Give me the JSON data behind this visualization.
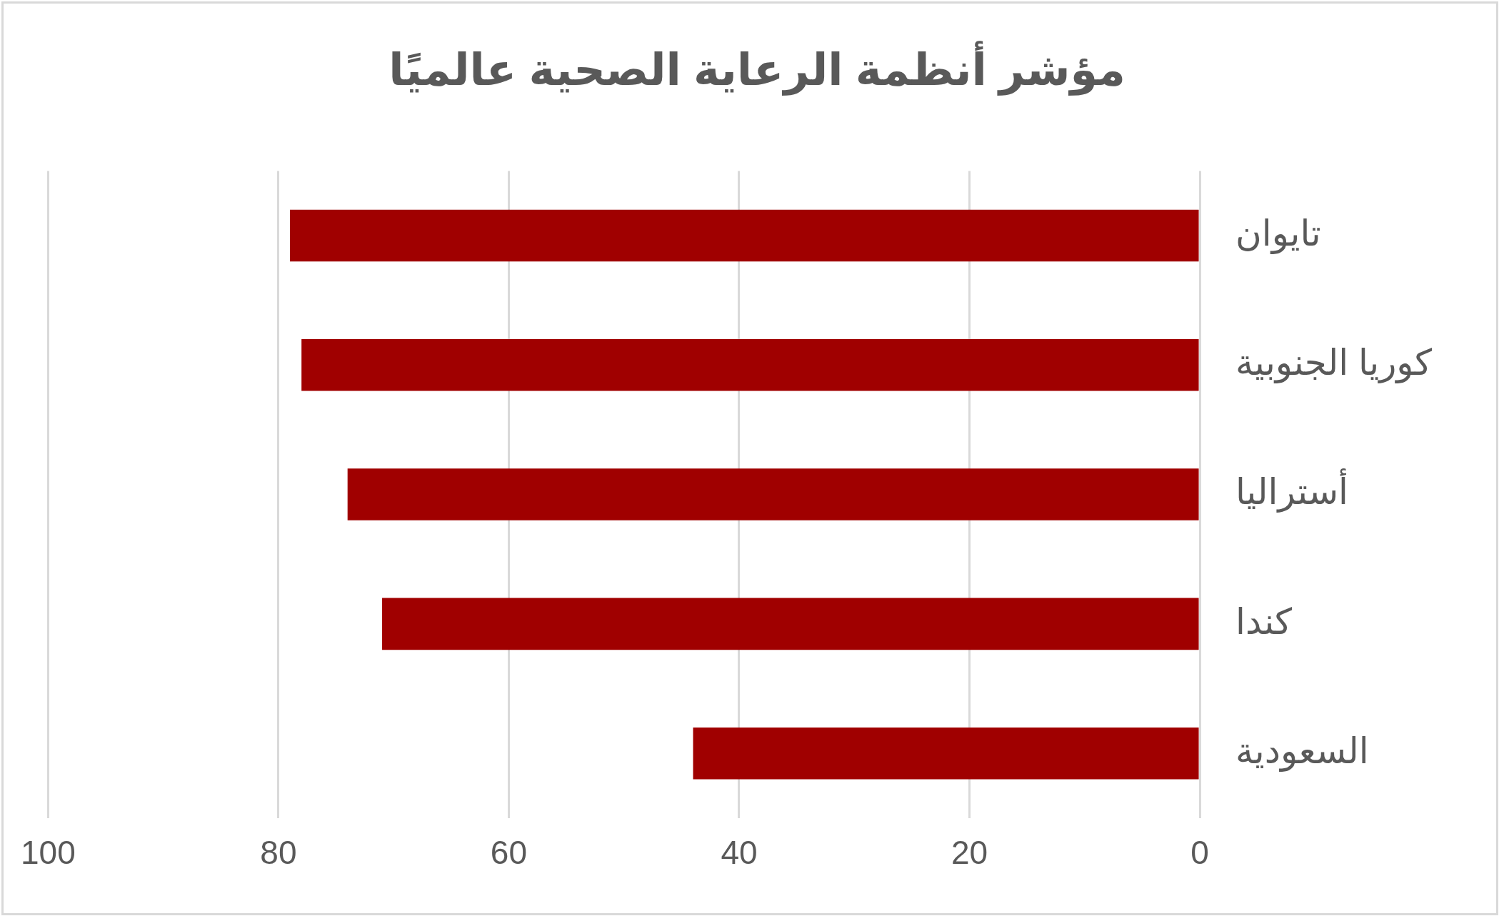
{
  "chart_data": {
    "type": "bar",
    "orientation": "horizontal",
    "title": "مؤشر أنظمة الرعاية الصحية عالميًا",
    "categories": [
      "تايوان",
      "كوريا الجنوبية",
      "أستراليا",
      "كندا",
      "السعودية"
    ],
    "values": [
      79,
      78,
      74,
      71,
      44
    ],
    "color": "#a00000",
    "xlim": [
      100,
      0
    ],
    "xticks": [
      100,
      80,
      60,
      40,
      20,
      0
    ],
    "grid": "x",
    "legend": false
  }
}
